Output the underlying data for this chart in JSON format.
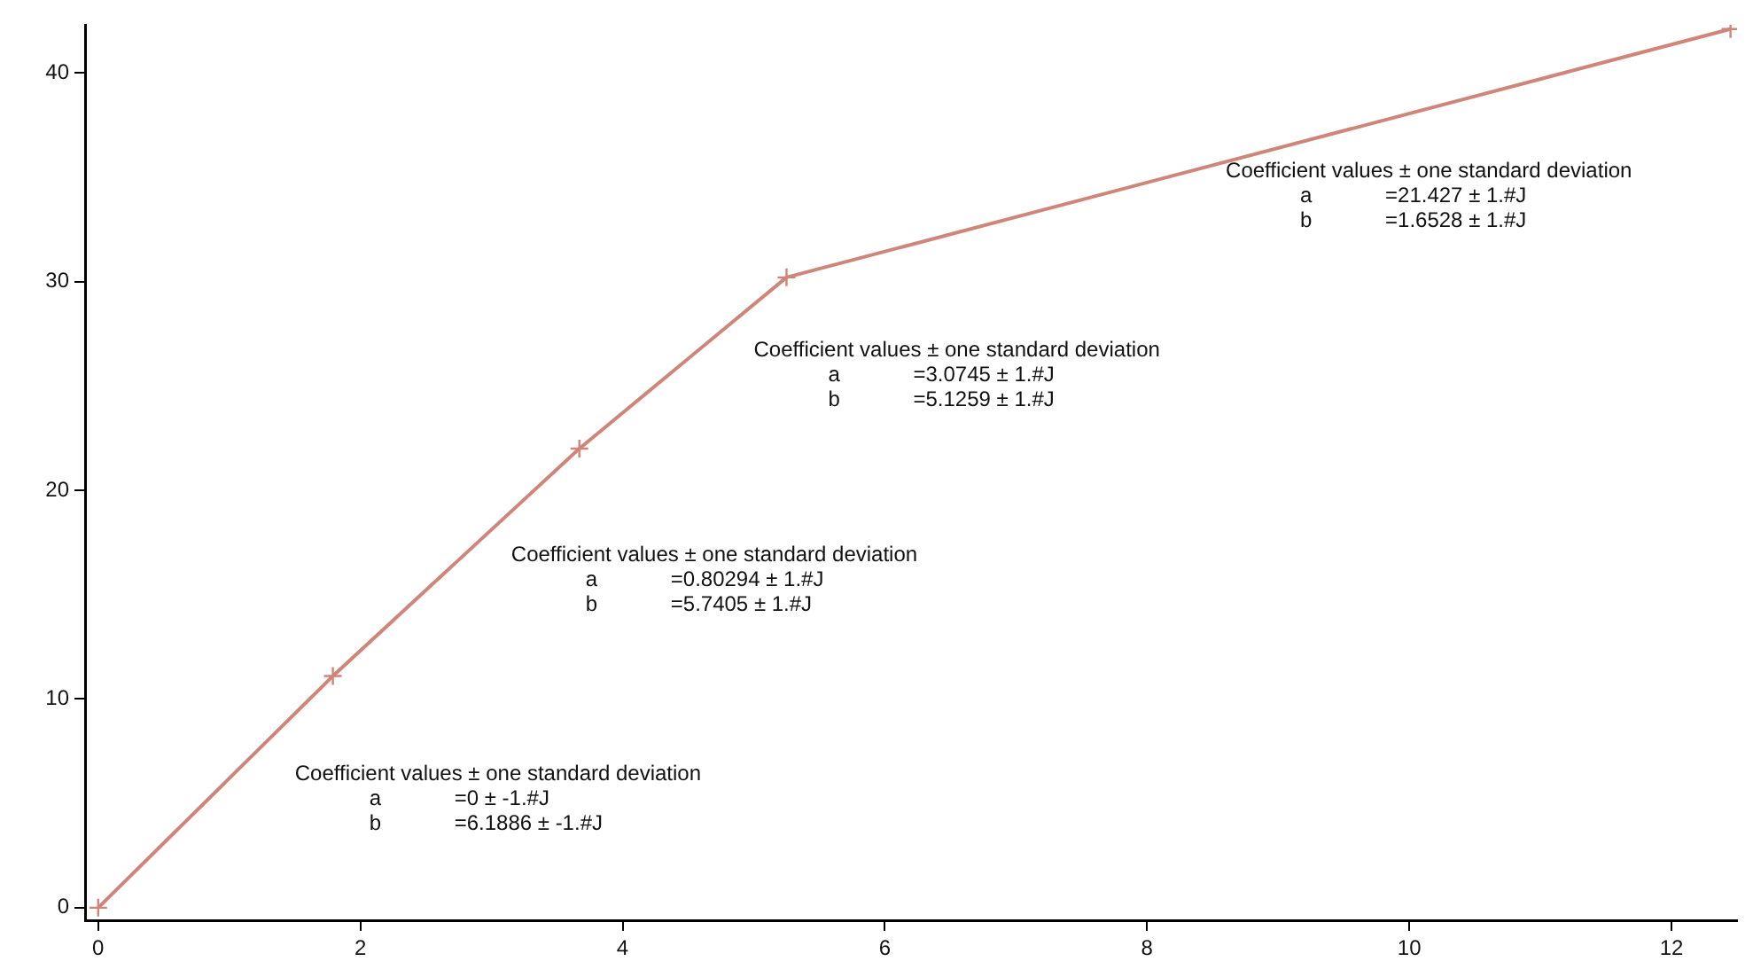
{
  "chart_data": {
    "type": "line",
    "x": [
      0,
      1.79,
      3.67,
      5.25,
      12.45
    ],
    "series": [
      {
        "color": "#d0857a",
        "values": [
          0,
          11.1,
          22.0,
          30.2,
          42.1
        ]
      }
    ],
    "xlim": [
      -0.1,
      12.5
    ],
    "xticks": [
      0,
      2,
      4,
      6,
      8,
      10,
      12
    ],
    "ylim": [
      -0.6,
      42.3
    ],
    "yticks": [
      0,
      10,
      20,
      30,
      40
    ],
    "grid": false,
    "legend": false,
    "marker": "cross",
    "line_style": "solid",
    "annotations": [
      "Coefficient values ± one standard deviation\na\t=0 ± -1.#J\nb\t=6.1886 ± -1.#J",
      "Coefficient values ± one standard deviation\na\t=0.80294 ± 1.#J\nb\t=5.7405 ± 1.#J",
      "Coefficient values ± one standard deviation\na\t=3.0745 ± 1.#J\nb\t=5.1259 ± 1.#J",
      "Coefficient values ± one standard deviation\na\t=21.427 ± 1.#J\nb\t=1.6528 ± 1.#J"
    ]
  }
}
